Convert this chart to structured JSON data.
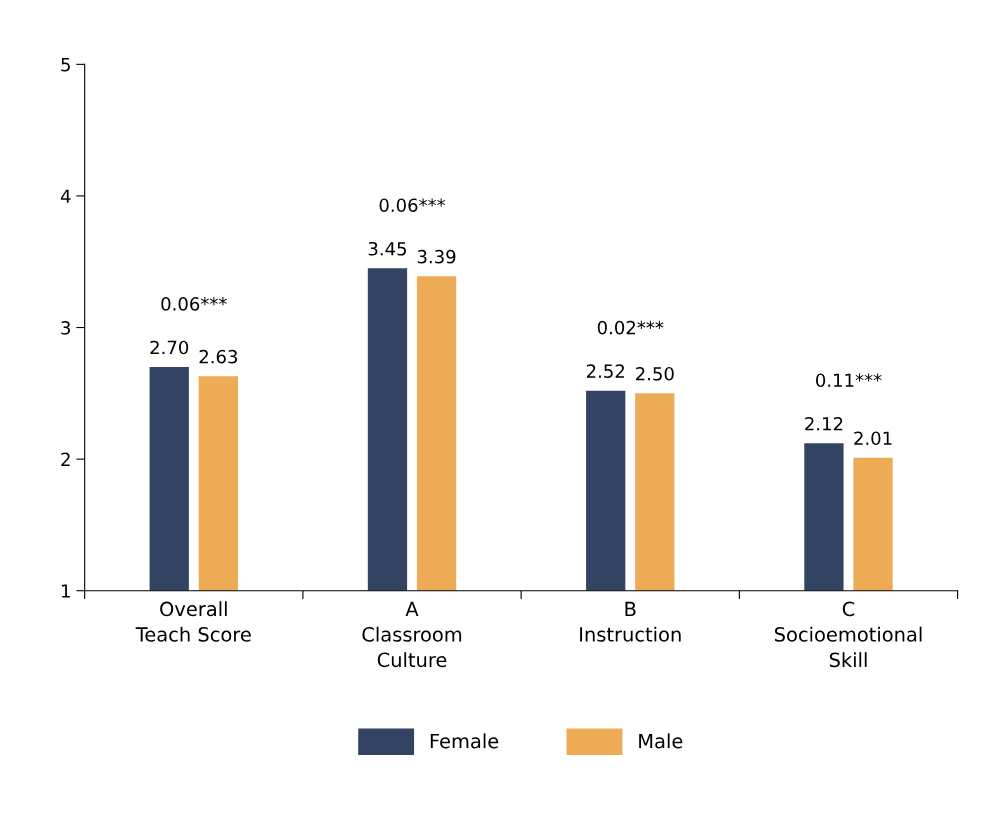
{
  "chart_data": {
    "type": "bar",
    "categories": [
      "Overall\nTeach Score",
      "A\nClassroom\nCulture",
      "B\nInstruction",
      "C\nSocioemotional\nSkill"
    ],
    "series": [
      {
        "name": "Female",
        "color": "#324363",
        "values": [
          2.7,
          3.45,
          2.52,
          2.12
        ],
        "value_labels": [
          "2.70",
          "3.45",
          "2.52",
          "2.12"
        ]
      },
      {
        "name": "Male",
        "color": "#eeab56",
        "values": [
          2.63,
          3.39,
          2.5,
          2.01
        ],
        "value_labels": [
          "2.63",
          "3.39",
          "2.50",
          "2.01"
        ]
      }
    ],
    "ylim": [
      1,
      5
    ],
    "yticks": [
      1,
      2,
      3,
      4,
      5
    ],
    "grid": false,
    "legend": "bottom",
    "annotations": [
      "0.06***",
      "0.06***",
      "0.02***",
      "0.11***"
    ]
  }
}
